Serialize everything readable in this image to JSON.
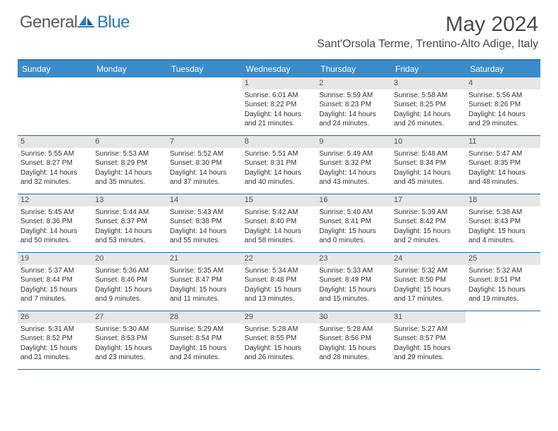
{
  "logo": {
    "text1": "General",
    "text2": "Blue"
  },
  "header": {
    "month_title": "May 2024",
    "location": "Sant'Orsola Terme, Trentino-Alto Adige, Italy"
  },
  "colors": {
    "header_bar": "#3b8bc9",
    "header_border_top": "#2a7ab8",
    "row_border": "#2a6a9a",
    "daynum_bg": "#e6e6e6",
    "text": "#333333",
    "logo_gray": "#5a5a5a",
    "logo_blue": "#2a7ab8"
  },
  "weekdays": [
    "Sunday",
    "Monday",
    "Tuesday",
    "Wednesday",
    "Thursday",
    "Friday",
    "Saturday"
  ],
  "weeks": [
    [
      {
        "empty": true
      },
      {
        "empty": true
      },
      {
        "empty": true
      },
      {
        "num": "1",
        "sunrise": "6:01 AM",
        "sunset": "8:22 PM",
        "daylight": "14 hours and 21 minutes."
      },
      {
        "num": "2",
        "sunrise": "5:59 AM",
        "sunset": "8:23 PM",
        "daylight": "14 hours and 24 minutes."
      },
      {
        "num": "3",
        "sunrise": "5:58 AM",
        "sunset": "8:25 PM",
        "daylight": "14 hours and 26 minutes."
      },
      {
        "num": "4",
        "sunrise": "5:56 AM",
        "sunset": "8:26 PM",
        "daylight": "14 hours and 29 minutes."
      }
    ],
    [
      {
        "num": "5",
        "sunrise": "5:55 AM",
        "sunset": "8:27 PM",
        "daylight": "14 hours and 32 minutes."
      },
      {
        "num": "6",
        "sunrise": "5:53 AM",
        "sunset": "8:29 PM",
        "daylight": "14 hours and 35 minutes."
      },
      {
        "num": "7",
        "sunrise": "5:52 AM",
        "sunset": "8:30 PM",
        "daylight": "14 hours and 37 minutes."
      },
      {
        "num": "8",
        "sunrise": "5:51 AM",
        "sunset": "8:31 PM",
        "daylight": "14 hours and 40 minutes."
      },
      {
        "num": "9",
        "sunrise": "5:49 AM",
        "sunset": "8:32 PM",
        "daylight": "14 hours and 43 minutes."
      },
      {
        "num": "10",
        "sunrise": "5:48 AM",
        "sunset": "8:34 PM",
        "daylight": "14 hours and 45 minutes."
      },
      {
        "num": "11",
        "sunrise": "5:47 AM",
        "sunset": "8:35 PM",
        "daylight": "14 hours and 48 minutes."
      }
    ],
    [
      {
        "num": "12",
        "sunrise": "5:45 AM",
        "sunset": "8:36 PM",
        "daylight": "14 hours and 50 minutes."
      },
      {
        "num": "13",
        "sunrise": "5:44 AM",
        "sunset": "8:37 PM",
        "daylight": "14 hours and 53 minutes."
      },
      {
        "num": "14",
        "sunrise": "5:43 AM",
        "sunset": "8:38 PM",
        "daylight": "14 hours and 55 minutes."
      },
      {
        "num": "15",
        "sunrise": "5:42 AM",
        "sunset": "8:40 PM",
        "daylight": "14 hours and 58 minutes."
      },
      {
        "num": "16",
        "sunrise": "5:40 AM",
        "sunset": "8:41 PM",
        "daylight": "15 hours and 0 minutes."
      },
      {
        "num": "17",
        "sunrise": "5:39 AM",
        "sunset": "8:42 PM",
        "daylight": "15 hours and 2 minutes."
      },
      {
        "num": "18",
        "sunrise": "5:38 AM",
        "sunset": "8:43 PM",
        "daylight": "15 hours and 4 minutes."
      }
    ],
    [
      {
        "num": "19",
        "sunrise": "5:37 AM",
        "sunset": "8:44 PM",
        "daylight": "15 hours and 7 minutes."
      },
      {
        "num": "20",
        "sunrise": "5:36 AM",
        "sunset": "8:46 PM",
        "daylight": "15 hours and 9 minutes."
      },
      {
        "num": "21",
        "sunrise": "5:35 AM",
        "sunset": "8:47 PM",
        "daylight": "15 hours and 11 minutes."
      },
      {
        "num": "22",
        "sunrise": "5:34 AM",
        "sunset": "8:48 PM",
        "daylight": "15 hours and 13 minutes."
      },
      {
        "num": "23",
        "sunrise": "5:33 AM",
        "sunset": "8:49 PM",
        "daylight": "15 hours and 15 minutes."
      },
      {
        "num": "24",
        "sunrise": "5:32 AM",
        "sunset": "8:50 PM",
        "daylight": "15 hours and 17 minutes."
      },
      {
        "num": "25",
        "sunrise": "5:32 AM",
        "sunset": "8:51 PM",
        "daylight": "15 hours and 19 minutes."
      }
    ],
    [
      {
        "num": "26",
        "sunrise": "5:31 AM",
        "sunset": "8:52 PM",
        "daylight": "15 hours and 21 minutes."
      },
      {
        "num": "27",
        "sunrise": "5:30 AM",
        "sunset": "8:53 PM",
        "daylight": "15 hours and 23 minutes."
      },
      {
        "num": "28",
        "sunrise": "5:29 AM",
        "sunset": "8:54 PM",
        "daylight": "15 hours and 24 minutes."
      },
      {
        "num": "29",
        "sunrise": "5:28 AM",
        "sunset": "8:55 PM",
        "daylight": "15 hours and 26 minutes."
      },
      {
        "num": "30",
        "sunrise": "5:28 AM",
        "sunset": "8:56 PM",
        "daylight": "15 hours and 28 minutes."
      },
      {
        "num": "31",
        "sunrise": "5:27 AM",
        "sunset": "8:57 PM",
        "daylight": "15 hours and 29 minutes."
      },
      {
        "empty": true
      }
    ]
  ],
  "labels": {
    "sunrise_prefix": "Sunrise: ",
    "sunset_prefix": "Sunset: ",
    "daylight_prefix": "Daylight: "
  }
}
